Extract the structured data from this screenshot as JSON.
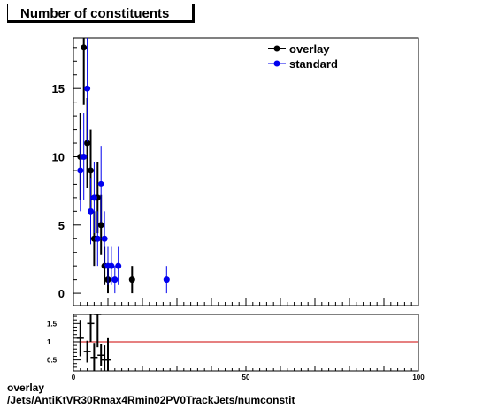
{
  "title": "Number of constituents",
  "captions": [
    "overlay",
    "/Jets/AntiKtVR30Rmax4Rmin02PV0TrackJets/numconstit"
  ],
  "colors": {
    "overlay": "#000000",
    "standard": "#0000ee",
    "ratio_line": "#cc0000"
  },
  "chart_data": [
    {
      "type": "scatter",
      "title": "Number of constituents",
      "xlim": [
        0,
        100
      ],
      "ylim": [
        -0.9,
        18.7
      ],
      "yticks": [
        0,
        5,
        10,
        15
      ],
      "legend": {
        "position": "top-right"
      },
      "grid": false,
      "series": [
        {
          "name": "overlay",
          "points": [
            {
              "x": 2,
              "y": 10,
              "err": 3.2
            },
            {
              "x": 3,
              "y": 18,
              "err": 4.2
            },
            {
              "x": 4,
              "y": 11,
              "err": 3.3
            },
            {
              "x": 5,
              "y": 9,
              "err": 3.0
            },
            {
              "x": 6,
              "y": 4,
              "err": 2.0
            },
            {
              "x": 7,
              "y": 7,
              "err": 2.6
            },
            {
              "x": 8,
              "y": 5,
              "err": 2.2
            },
            {
              "x": 9,
              "y": 2,
              "err": 1.4
            },
            {
              "x": 10,
              "y": 1,
              "err": 1.0
            },
            {
              "x": 17,
              "y": 1,
              "err": 1.0
            }
          ]
        },
        {
          "name": "standard",
          "points": [
            {
              "x": 2,
              "y": 9,
              "err": 3.0
            },
            {
              "x": 3,
              "y": 10,
              "err": 3.2
            },
            {
              "x": 4,
              "y": 15,
              "err": 3.9
            },
            {
              "x": 5,
              "y": 6,
              "err": 2.4
            },
            {
              "x": 6,
              "y": 7,
              "err": 2.6
            },
            {
              "x": 7,
              "y": 4,
              "err": 2.0
            },
            {
              "x": 8,
              "y": 8,
              "err": 2.8
            },
            {
              "x": 9,
              "y": 4,
              "err": 2.0
            },
            {
              "x": 10,
              "y": 2,
              "err": 1.4
            },
            {
              "x": 11,
              "y": 2,
              "err": 1.4
            },
            {
              "x": 12,
              "y": 1,
              "err": 1.0
            },
            {
              "x": 13,
              "y": 2,
              "err": 1.4
            },
            {
              "x": 27,
              "y": 1,
              "err": 1.0
            }
          ]
        }
      ]
    },
    {
      "type": "scatter",
      "xlim": [
        0,
        100
      ],
      "ylim": [
        0.2,
        1.75
      ],
      "xticks": [
        0,
        50,
        100
      ],
      "yticks": [
        0.5,
        1,
        1.5
      ],
      "reference_line": 1,
      "series": [
        {
          "name": "ratio",
          "points": [
            {
              "x": 2,
              "y": 1.1,
              "err": 0.5
            },
            {
              "x": 4,
              "y": 0.73,
              "err": 0.3
            },
            {
              "x": 5,
              "y": 1.5,
              "err": 0.5
            },
            {
              "x": 6,
              "y": 0.57,
              "err": 0.4
            },
            {
              "x": 7,
              "y": 1.75,
              "err": 0.9
            },
            {
              "x": 8,
              "y": 0.63,
              "err": 0.3
            },
            {
              "x": 9,
              "y": 0.5,
              "err": 0.4
            },
            {
              "x": 10,
              "y": 0.5,
              "err": 0.6
            }
          ]
        }
      ]
    }
  ]
}
